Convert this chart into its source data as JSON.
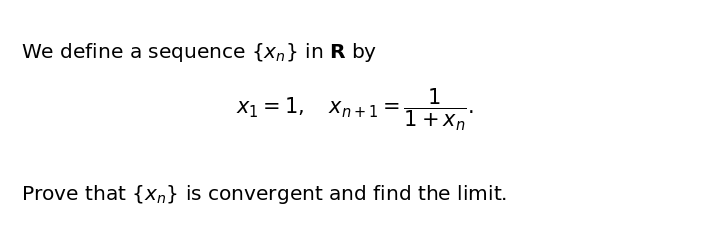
{
  "bg_color": "#ffffff",
  "line1": "We define a sequence $\\{x_n\\}$ in $\\mathbf{R}$ by",
  "line2_left": "$x_1 = 1, \\quad x_{n+1} = \\dfrac{1}{1+x_n}.$",
  "line3": "Prove that $\\{x_n\\}$ is convergent and find the limit.",
  "figsize": [
    7.1,
    2.29
  ],
  "dpi": 100
}
